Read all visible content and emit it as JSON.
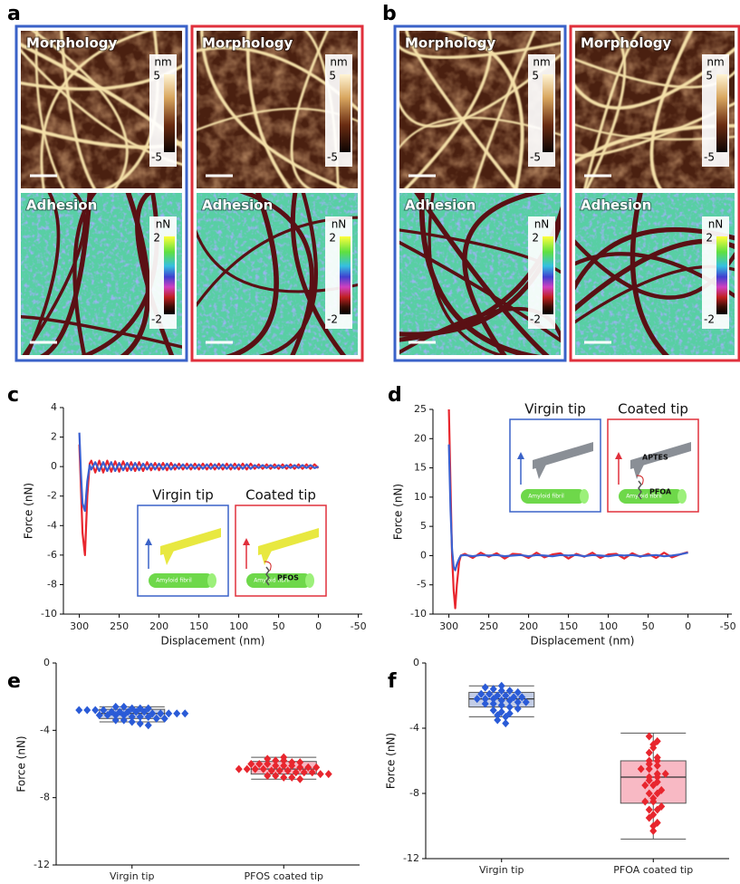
{
  "image_panels": [
    {
      "letter": "a",
      "columns": [
        {
          "frame_color": "#3a62c8",
          "rows": [
            {
              "label": "Morphology",
              "unit": "nm",
              "scale": [
                5,
                -5
              ]
            },
            {
              "label": "Adhesion",
              "unit": "nN",
              "scale": [
                2,
                -2
              ]
            }
          ]
        },
        {
          "frame_color": "#e0303c",
          "rows": [
            {
              "label": "Morphology",
              "unit": "nm",
              "scale": [
                5,
                -5
              ]
            },
            {
              "label": "Adhesion",
              "unit": "nN",
              "scale": [
                2,
                -2
              ]
            }
          ]
        }
      ]
    },
    {
      "letter": "b",
      "columns": [
        {
          "frame_color": "#3a62c8",
          "rows": [
            {
              "label": "Morphology",
              "unit": "nm",
              "scale": [
                5,
                -5
              ]
            },
            {
              "label": "Adhesion",
              "unit": "nN",
              "scale": [
                2,
                -2
              ]
            }
          ]
        },
        {
          "frame_color": "#e0303c",
          "rows": [
            {
              "label": "Morphology",
              "unit": "nm",
              "scale": [
                5,
                -5
              ]
            },
            {
              "label": "Adhesion",
              "unit": "nN",
              "scale": [
                2,
                -2
              ]
            }
          ]
        }
      ]
    }
  ],
  "chart_data": [
    {
      "type": "line",
      "letter": "c",
      "xlabel": "Displacement (nm)",
      "ylabel": "Force (nN)",
      "xlim": [
        320,
        -55
      ],
      "ylim": [
        -10,
        4
      ],
      "xticks": [
        300,
        250,
        200,
        150,
        100,
        50,
        0,
        -50
      ],
      "yticks": [
        -10,
        -8,
        -6,
        -4,
        -2,
        0,
        2,
        4
      ],
      "annotations": {
        "left_title": "Virgin tip",
        "right_title": "Coated tip",
        "substrate": "Amyloid fibril",
        "molecule": "PFOS"
      },
      "series": [
        {
          "color": "#e8262e",
          "x": [
            300,
            298,
            296,
            293,
            290,
            287,
            285,
            280,
            275,
            270,
            265,
            260,
            255,
            250,
            245,
            240,
            235,
            230,
            225,
            220,
            215,
            210,
            205,
            200,
            195,
            190,
            185,
            180,
            175,
            170,
            165,
            160,
            155,
            150,
            145,
            140,
            135,
            130,
            125,
            120,
            115,
            110,
            105,
            100,
            95,
            90,
            85,
            80,
            75,
            70,
            65,
            60,
            55,
            50,
            45,
            40,
            35,
            30,
            25,
            20,
            15,
            10,
            5,
            0
          ],
          "values": [
            1.5,
            -1.5,
            -4.5,
            -6,
            -2,
            0.2,
            0.4,
            -0.4,
            0.4,
            -0.4,
            0.4,
            -0.35,
            0.35,
            -0.35,
            0.35,
            -0.3,
            0.3,
            -0.3,
            0.3,
            -0.3,
            0.3,
            -0.25,
            0.25,
            -0.25,
            0.25,
            -0.25,
            0.25,
            -0.2,
            0.2,
            -0.2,
            0.2,
            -0.2,
            0.2,
            -0.2,
            0.2,
            -0.2,
            0.2,
            -0.2,
            0.2,
            -0.2,
            0.2,
            -0.2,
            0.2,
            -0.2,
            0.2,
            -0.2,
            0.2,
            -0.15,
            0.15,
            -0.15,
            0.15,
            -0.15,
            0.15,
            -0.15,
            0.15,
            -0.15,
            0.15,
            -0.15,
            0.15,
            -0.15,
            0.15,
            -0.15,
            0.15,
            -0.1
          ]
        },
        {
          "color": "#3a5fd0",
          "x": [
            300,
            298,
            296,
            293,
            290,
            287,
            285,
            280,
            275,
            270,
            265,
            260,
            255,
            250,
            245,
            240,
            235,
            230,
            225,
            220,
            215,
            210,
            205,
            200,
            195,
            190,
            185,
            180,
            175,
            170,
            165,
            160,
            155,
            150,
            145,
            140,
            135,
            130,
            125,
            120,
            115,
            110,
            105,
            100,
            95,
            90,
            85,
            80,
            75,
            70,
            65,
            60,
            55,
            50,
            45,
            40,
            35,
            30,
            25,
            20,
            15,
            10,
            5,
            0
          ],
          "values": [
            2.3,
            -0.5,
            -2.5,
            -3,
            -1,
            0.1,
            -0.2,
            0.3,
            -0.3,
            0.3,
            -0.3,
            0.3,
            -0.3,
            0.25,
            -0.25,
            0.25,
            -0.25,
            0.25,
            -0.25,
            0.2,
            -0.2,
            0.2,
            -0.2,
            0.2,
            -0.2,
            0.2,
            -0.2,
            0.15,
            -0.15,
            0.15,
            -0.15,
            0.15,
            -0.15,
            0.15,
            -0.15,
            0.15,
            -0.15,
            0.15,
            -0.15,
            0.15,
            -0.15,
            0.15,
            -0.15,
            0.15,
            -0.15,
            0.15,
            -0.15,
            0.1,
            -0.1,
            0.1,
            -0.1,
            0.1,
            -0.1,
            0.1,
            -0.1,
            0.1,
            -0.1,
            0.1,
            -0.1,
            0.1,
            -0.1,
            0.1,
            -0.1,
            0
          ]
        }
      ]
    },
    {
      "type": "line",
      "letter": "d",
      "xlabel": "Displacement (nm)",
      "ylabel": "Force (nN)",
      "xlim": [
        320,
        -55
      ],
      "ylim": [
        -10,
        25
      ],
      "xticks": [
        300,
        250,
        200,
        150,
        100,
        50,
        0,
        -50
      ],
      "yticks": [
        -10,
        -5,
        0,
        5,
        10,
        15,
        20,
        25
      ],
      "annotations": {
        "left_title": "Virgin tip",
        "right_title": "Coated tip",
        "substrate": "Amyloid fibril",
        "linker": "APTES",
        "molecule": "PFOA"
      },
      "series": [
        {
          "color": "#e8262e",
          "x": [
            300,
            298,
            296,
            294,
            292,
            290,
            287,
            285,
            280,
            270,
            260,
            250,
            240,
            230,
            220,
            210,
            200,
            190,
            180,
            170,
            160,
            150,
            140,
            130,
            120,
            110,
            100,
            90,
            80,
            70,
            60,
            50,
            40,
            30,
            20,
            10,
            0
          ],
          "values": [
            25,
            12,
            0,
            -6,
            -9,
            -5,
            -1,
            0,
            0.3,
            -0.4,
            0.5,
            -0.2,
            0.4,
            -0.5,
            0.3,
            0.2,
            -0.4,
            0.5,
            -0.3,
            0.2,
            0.4,
            -0.5,
            0.3,
            -0.2,
            0.5,
            -0.4,
            0.2,
            0.3,
            -0.5,
            0.4,
            -0.2,
            0.3,
            -0.4,
            0.5,
            -0.3,
            0.2,
            0.6
          ]
        },
        {
          "color": "#3a5fd0",
          "x": [
            300,
            298,
            296,
            294,
            292,
            290,
            287,
            285,
            280,
            270,
            260,
            250,
            240,
            230,
            220,
            210,
            200,
            190,
            180,
            170,
            160,
            150,
            140,
            130,
            120,
            110,
            100,
            90,
            80,
            70,
            60,
            50,
            40,
            30,
            20,
            10,
            0
          ],
          "values": [
            19,
            8,
            1,
            -2,
            -2.5,
            -1.5,
            -0.5,
            0,
            0.1,
            -0.1,
            0.1,
            0,
            0.1,
            -0.1,
            0,
            0.1,
            -0.1,
            0.1,
            0,
            -0.1,
            0.1,
            0,
            0.1,
            -0.1,
            0.1,
            0,
            -0.1,
            0.1,
            0,
            0.1,
            -0.1,
            0,
            0.1,
            -0.1,
            0,
            0.2,
            0.5
          ]
        }
      ]
    },
    {
      "type": "box",
      "letter": "e",
      "ylabel": "Force (nN)",
      "ylim": [
        -12,
        0
      ],
      "yticks": [
        -12,
        -8,
        -4,
        0
      ],
      "categories": [
        "Virgin tip",
        "PFOS coated tip"
      ],
      "boxes": [
        {
          "color": "#2a5bd7",
          "fill": "#c3cde6",
          "min": -3.5,
          "q1": -3.3,
          "median": -3.0,
          "q3": -2.75,
          "max": -2.6,
          "points": [
            -2.6,
            -2.6,
            -2.7,
            -2.7,
            -2.7,
            -2.8,
            -2.8,
            -2.8,
            -2.8,
            -2.9,
            -2.9,
            -2.9,
            -2.9,
            -2.9,
            -3.0,
            -3.0,
            -3.0,
            -3.0,
            -3.0,
            -3.1,
            -3.1,
            -3.1,
            -3.1,
            -3.2,
            -3.2,
            -3.2,
            -3.3,
            -3.3,
            -3.4,
            -3.4,
            -3.5,
            -3.6,
            -3.7
          ]
        },
        {
          "color": "#e8262e",
          "fill": "#f8b9c4",
          "min": -6.9,
          "q1": -6.6,
          "median": -6.3,
          "q3": -5.85,
          "max": -5.6,
          "points": [
            -5.6,
            -5.7,
            -5.8,
            -5.8,
            -5.9,
            -5.9,
            -6.0,
            -6.0,
            -6.0,
            -6.1,
            -6.1,
            -6.1,
            -6.2,
            -6.2,
            -6.2,
            -6.3,
            -6.3,
            -6.3,
            -6.3,
            -6.4,
            -6.4,
            -6.4,
            -6.5,
            -6.5,
            -6.5,
            -6.6,
            -6.6,
            -6.7,
            -6.7,
            -6.8,
            -6.8,
            -6.9
          ]
        }
      ]
    },
    {
      "type": "box",
      "letter": "f",
      "ylabel": "Force (nN)",
      "ylim": [
        -12,
        0
      ],
      "yticks": [
        -12,
        -8,
        -4,
        0
      ],
      "categories": [
        "Virgin tip",
        "PFOA coated tip"
      ],
      "boxes": [
        {
          "color": "#2a5bd7",
          "fill": "#c3cde6",
          "min": -3.3,
          "q1": -2.7,
          "median": -2.2,
          "q3": -1.8,
          "max": -1.4,
          "points": [
            -1.4,
            -1.5,
            -1.6,
            -1.7,
            -1.7,
            -1.8,
            -1.9,
            -1.9,
            -2.0,
            -2.0,
            -2.1,
            -2.1,
            -2.2,
            -2.2,
            -2.2,
            -2.3,
            -2.3,
            -2.4,
            -2.4,
            -2.5,
            -2.5,
            -2.6,
            -2.7,
            -2.8,
            -2.9,
            -3.0,
            -3.1,
            -3.2,
            -3.3,
            -3.5,
            -3.7
          ]
        },
        {
          "color": "#e8262e",
          "fill": "#f8b9c4",
          "min": -10.8,
          "q1": -8.6,
          "median": -7.0,
          "q3": -6.0,
          "max": -4.3,
          "points": [
            -4.5,
            -4.8,
            -5.0,
            -5.2,
            -5.5,
            -5.8,
            -6.0,
            -6.0,
            -6.2,
            -6.3,
            -6.5,
            -6.5,
            -6.8,
            -6.8,
            -7.0,
            -7.0,
            -7.2,
            -7.3,
            -7.5,
            -7.5,
            -7.8,
            -8.0,
            -8.0,
            -8.3,
            -8.5,
            -8.5,
            -8.8,
            -9.0,
            -9.0,
            -9.3,
            -9.5,
            -9.8,
            -10.0,
            -10.3
          ]
        }
      ]
    }
  ]
}
